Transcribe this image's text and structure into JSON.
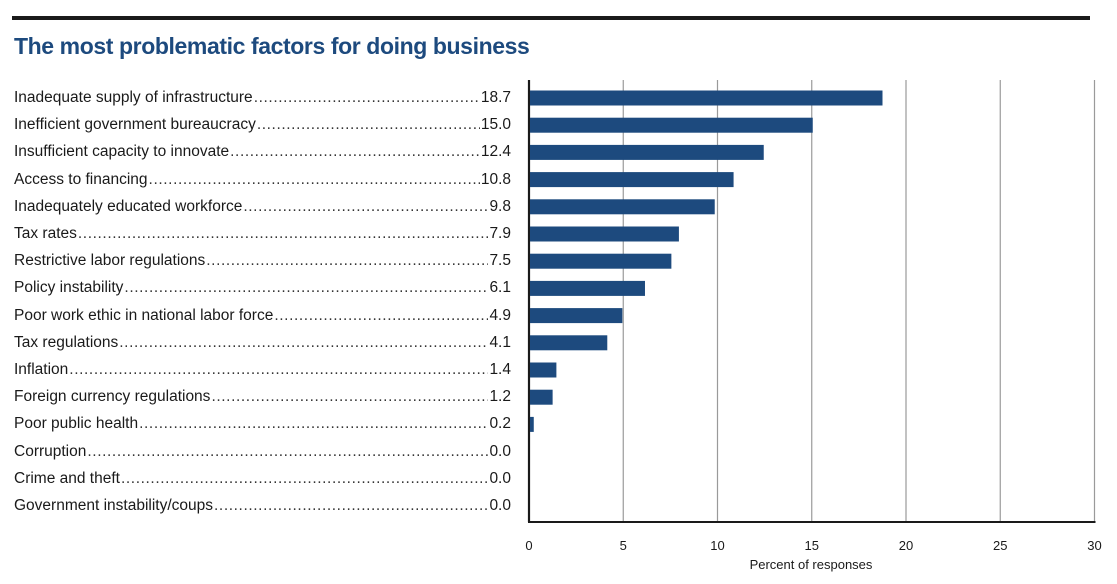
{
  "chart_data": {
    "type": "bar",
    "orientation": "horizontal",
    "title": "The most problematic factors for doing business",
    "xlabel": "Percent of responses",
    "ylabel": "",
    "xlim": [
      0,
      30
    ],
    "xticks": [
      0,
      5,
      10,
      15,
      20,
      25,
      30
    ],
    "grid": true,
    "categories": [
      "Inadequate supply of infrastructure",
      "Inefficient government bureaucracy",
      "Insufficient capacity to innovate",
      "Access to financing",
      "Inadequately educated workforce",
      "Tax rates",
      "Restrictive labor regulations",
      "Policy instability",
      "Poor work ethic in national labor force",
      "Tax regulations",
      "Inflation",
      "Foreign currency regulations",
      "Poor public health",
      "Corruption",
      "Crime and theft",
      "Government instability/coups"
    ],
    "values": [
      18.7,
      15.0,
      12.4,
      10.8,
      9.8,
      7.9,
      7.5,
      6.1,
      4.9,
      4.1,
      1.4,
      1.2,
      0.2,
      0.0,
      0.0,
      0.0
    ],
    "value_labels": [
      "18.7",
      "15.0",
      "12.4",
      "10.8",
      "9.8",
      "7.9",
      "7.5",
      "6.1",
      "4.9",
      "4.1",
      "1.4",
      "1.2",
      "0.2",
      "0.0",
      "0.0",
      "0.0"
    ]
  },
  "colors": {
    "bar": "#1d4a7e",
    "title": "#1d4a7e",
    "grid": "#9a9a9a",
    "axis": "#1a1a1a"
  }
}
